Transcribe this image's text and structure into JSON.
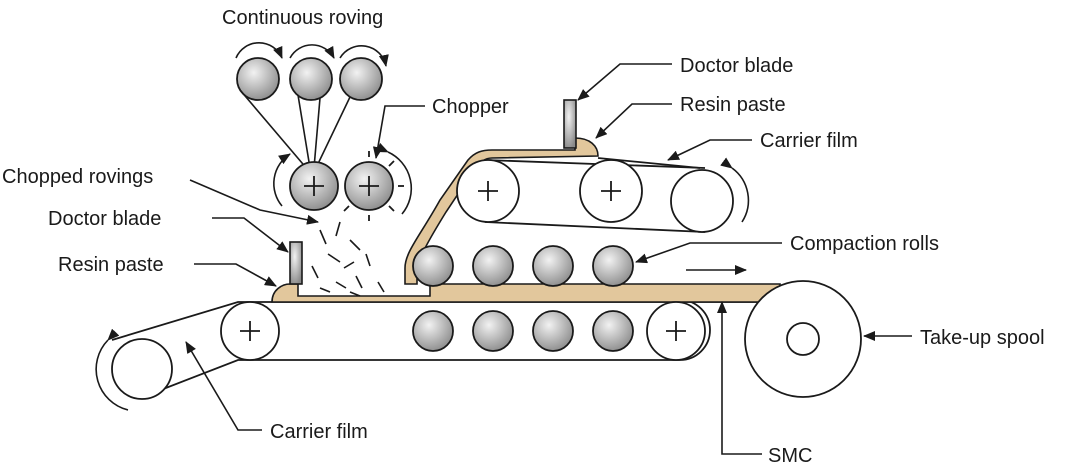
{
  "labels": {
    "continuous_roving": "Continuous roving",
    "chopper": "Chopper",
    "chopped_rovings": "Chopped rovings",
    "doctor_blade_left": "Doctor blade",
    "resin_paste_left": "Resin paste",
    "doctor_blade_top": "Doctor blade",
    "resin_paste_top": "Resin paste",
    "carrier_film_top": "Carrier film",
    "compaction_rolls": "Compaction rolls",
    "take_up_spool": "Take-up spool",
    "carrier_film_bottom": "Carrier film",
    "smc": "SMC"
  },
  "colors": {
    "resin_paste": "#e2c79c",
    "roll_light": "#f2f2f2",
    "roll_dark": "#8a8a8a",
    "ink": "#1a1a1a"
  }
}
